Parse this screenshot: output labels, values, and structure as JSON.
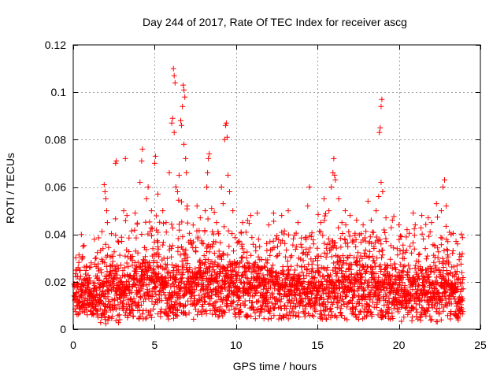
{
  "chart_data": {
    "type": "scatter",
    "title": "Day 244 of 2017, Rate Of TEC Index for receiver ascg",
    "xlabel": "GPS time / hours",
    "ylabel": "ROTI / TECUs",
    "xlim": [
      0,
      25
    ],
    "ylim": [
      0,
      0.12
    ],
    "xticks": [
      0,
      5,
      10,
      15,
      20,
      25
    ],
    "xtick_labels": [
      "0",
      "5",
      "10",
      "15",
      "20",
      "25"
    ],
    "yticks": [
      0,
      0.02,
      0.04,
      0.06,
      0.08,
      0.1,
      0.12
    ],
    "ytick_labels": [
      "0",
      "0.02",
      "0.04",
      "0.06",
      "0.08",
      "0.1",
      "0.12"
    ],
    "grid": true,
    "marker": "plus",
    "colors": {
      "points": "#ff0000",
      "grid": "#a0a0a0",
      "axis": "#000000"
    },
    "series": [
      {
        "name": "ROTI",
        "points": [
          [
            0.1,
            0.012
          ],
          [
            0.3,
            0.026
          ],
          [
            0.5,
            0.04
          ],
          [
            0.6,
            0.035
          ],
          [
            1.0,
            0.026
          ],
          [
            1.4,
            0.03
          ],
          [
            1.9,
            0.061
          ],
          [
            1.95,
            0.058
          ],
          [
            2.0,
            0.055
          ],
          [
            2.05,
            0.05
          ],
          [
            2.1,
            0.045
          ],
          [
            2.6,
            0.07
          ],
          [
            2.65,
            0.071
          ],
          [
            3.2,
            0.072
          ],
          [
            3.1,
            0.05
          ],
          [
            3.3,
            0.048
          ],
          [
            3.8,
            0.049
          ],
          [
            4.1,
            0.062
          ],
          [
            4.2,
            0.071
          ],
          [
            4.25,
            0.076
          ],
          [
            4.5,
            0.055
          ],
          [
            4.6,
            0.06
          ],
          [
            4.8,
            0.05
          ],
          [
            5.0,
            0.07
          ],
          [
            5.05,
            0.073
          ],
          [
            5.2,
            0.057
          ],
          [
            5.5,
            0.05
          ],
          [
            5.7,
            0.045
          ],
          [
            5.9,
            0.066
          ],
          [
            6.05,
            0.087
          ],
          [
            6.1,
            0.089
          ],
          [
            6.15,
            0.11
          ],
          [
            6.2,
            0.107
          ],
          [
            6.25,
            0.104
          ],
          [
            6.2,
            0.083
          ],
          [
            6.3,
            0.06
          ],
          [
            6.4,
            0.058
          ],
          [
            6.5,
            0.065
          ],
          [
            6.6,
            0.088
          ],
          [
            6.65,
            0.086
          ],
          [
            6.7,
            0.094
          ],
          [
            6.75,
            0.103
          ],
          [
            6.8,
            0.101
          ],
          [
            6.85,
            0.098
          ],
          [
            6.8,
            0.078
          ],
          [
            6.9,
            0.072
          ],
          [
            6.95,
            0.066
          ],
          [
            7.0,
            0.052
          ],
          [
            7.6,
            0.052
          ],
          [
            7.8,
            0.047
          ],
          [
            8.1,
            0.05
          ],
          [
            8.2,
            0.06
          ],
          [
            8.25,
            0.066
          ],
          [
            8.3,
            0.072
          ],
          [
            8.35,
            0.074
          ],
          [
            8.5,
            0.051
          ],
          [
            8.8,
            0.045
          ],
          [
            9.1,
            0.06
          ],
          [
            9.2,
            0.053
          ],
          [
            9.3,
            0.08
          ],
          [
            9.35,
            0.086
          ],
          [
            9.4,
            0.087
          ],
          [
            9.45,
            0.081
          ],
          [
            9.5,
            0.065
          ],
          [
            9.6,
            0.058
          ],
          [
            9.8,
            0.05
          ],
          [
            10.4,
            0.045
          ],
          [
            10.9,
            0.048
          ],
          [
            11.3,
            0.049
          ],
          [
            12.0,
            0.044
          ],
          [
            12.3,
            0.049
          ],
          [
            12.8,
            0.048
          ],
          [
            13.2,
            0.05
          ],
          [
            13.8,
            0.045
          ],
          [
            14.4,
            0.052
          ],
          [
            14.5,
            0.06
          ],
          [
            15.2,
            0.045
          ],
          [
            15.4,
            0.055
          ],
          [
            15.7,
            0.05
          ],
          [
            15.85,
            0.06
          ],
          [
            15.95,
            0.066
          ],
          [
            16.0,
            0.072
          ],
          [
            16.05,
            0.065
          ],
          [
            16.1,
            0.063
          ],
          [
            16.3,
            0.055
          ],
          [
            16.5,
            0.045
          ],
          [
            16.7,
            0.05
          ],
          [
            17.0,
            0.048
          ],
          [
            17.4,
            0.046
          ],
          [
            17.8,
            0.044
          ],
          [
            18.1,
            0.054
          ],
          [
            18.3,
            0.046
          ],
          [
            18.6,
            0.05
          ],
          [
            18.75,
            0.056
          ],
          [
            18.8,
            0.083
          ],
          [
            18.85,
            0.085
          ],
          [
            18.9,
            0.094
          ],
          [
            18.95,
            0.097
          ],
          [
            18.9,
            0.062
          ],
          [
            19.0,
            0.058
          ],
          [
            19.2,
            0.047
          ],
          [
            19.6,
            0.046
          ],
          [
            20.0,
            0.044
          ],
          [
            20.5,
            0.042
          ],
          [
            21.0,
            0.044
          ],
          [
            21.4,
            0.048
          ],
          [
            21.8,
            0.047
          ],
          [
            22.0,
            0.045
          ],
          [
            22.3,
            0.053
          ],
          [
            22.6,
            0.05
          ],
          [
            22.7,
            0.06
          ],
          [
            22.8,
            0.063
          ],
          [
            22.9,
            0.052
          ],
          [
            23.2,
            0.04
          ],
          [
            23.6,
            0.036
          ],
          [
            23.8,
            0.012
          ]
        ],
        "band": {
          "x_range": [
            0.05,
            23.95
          ],
          "points_per_hour": 130,
          "segments": [
            {
              "x": [
                0.0,
                1.5
              ],
              "baseline": 0.013,
              "spread": 0.011,
              "peak": 0.04,
              "min": 0.006
            },
            {
              "x": [
                1.5,
                3.5
              ],
              "baseline": 0.015,
              "spread": 0.014,
              "peak": 0.05,
              "min": 0.002
            },
            {
              "x": [
                3.5,
                7.5
              ],
              "baseline": 0.017,
              "spread": 0.016,
              "peak": 0.055,
              "min": 0.004
            },
            {
              "x": [
                7.5,
                10.0
              ],
              "baseline": 0.017,
              "spread": 0.015,
              "peak": 0.05,
              "min": 0.005
            },
            {
              "x": [
                10.0,
                15.0
              ],
              "baseline": 0.016,
              "spread": 0.014,
              "peak": 0.05,
              "min": 0.004
            },
            {
              "x": [
                15.0,
                19.5
              ],
              "baseline": 0.016,
              "spread": 0.015,
              "peak": 0.05,
              "min": 0.004
            },
            {
              "x": [
                19.5,
                24.0
              ],
              "baseline": 0.015,
              "spread": 0.014,
              "peak": 0.05,
              "min": 0.003
            }
          ]
        }
      }
    ]
  }
}
